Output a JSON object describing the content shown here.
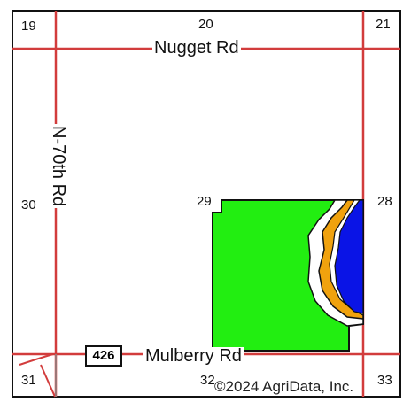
{
  "map": {
    "sections": {
      "s19": "19",
      "s20": "20",
      "s21": "21",
      "s30": "30",
      "s29": "29",
      "s28": "28",
      "s31": "31",
      "s32": "32",
      "s33": "33"
    },
    "roads": {
      "north": "Nugget Rd",
      "west": "N-70th Rd",
      "south": "Mulberry Rd",
      "highway_shield": "426"
    },
    "copyright": "©2024 AgriData, Inc.",
    "colors": {
      "field": "#22ee11",
      "water": "#0a14e6",
      "band_orange": "#f0a20e",
      "band_white": "#ffffff",
      "road": "#d23c3c",
      "outline": "#111111"
    }
  }
}
